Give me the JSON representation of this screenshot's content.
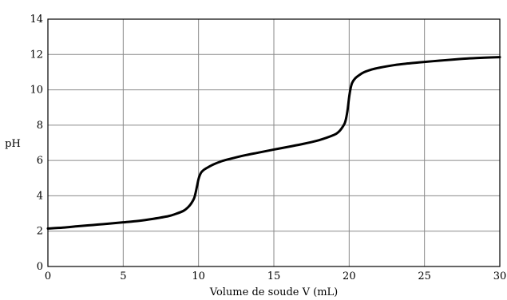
{
  "chart_data": {
    "type": "line",
    "xlabel": "Volume de soude V (mL)",
    "ylabel": "pH",
    "xlim": [
      0,
      30
    ],
    "ylim": [
      0,
      14
    ],
    "xticks": [
      0,
      5,
      10,
      15,
      20,
      25,
      30
    ],
    "yticks": [
      0,
      2,
      4,
      6,
      8,
      10,
      12,
      14
    ],
    "grid": true,
    "series": [
      {
        "x": [
          0,
          1,
          2,
          3,
          4,
          5,
          6,
          7,
          8,
          8.5,
          9,
          9.3,
          9.5,
          9.7,
          9.8,
          9.9,
          10,
          10.1,
          10.2,
          10.4,
          10.7,
          11,
          11.5,
          12,
          13,
          14,
          15,
          16,
          17,
          18,
          19,
          19.3,
          19.5,
          19.7,
          19.8,
          19.9,
          20,
          20.1,
          20.2,
          20.4,
          20.7,
          21,
          21.5,
          22,
          23,
          24,
          25,
          26,
          27,
          28,
          29,
          30
        ],
        "values": [
          2.15,
          2.2,
          2.28,
          2.35,
          2.42,
          2.5,
          2.58,
          2.7,
          2.85,
          2.98,
          3.15,
          3.35,
          3.55,
          3.85,
          4.15,
          4.55,
          4.95,
          5.2,
          5.35,
          5.5,
          5.65,
          5.78,
          5.95,
          6.07,
          6.28,
          6.45,
          6.62,
          6.78,
          6.95,
          7.15,
          7.45,
          7.62,
          7.82,
          8.1,
          8.4,
          8.9,
          9.6,
          10.1,
          10.4,
          10.65,
          10.85,
          11.0,
          11.15,
          11.25,
          11.4,
          11.5,
          11.58,
          11.65,
          11.72,
          11.78,
          11.82,
          11.85
        ],
        "color": "#000000"
      }
    ]
  }
}
